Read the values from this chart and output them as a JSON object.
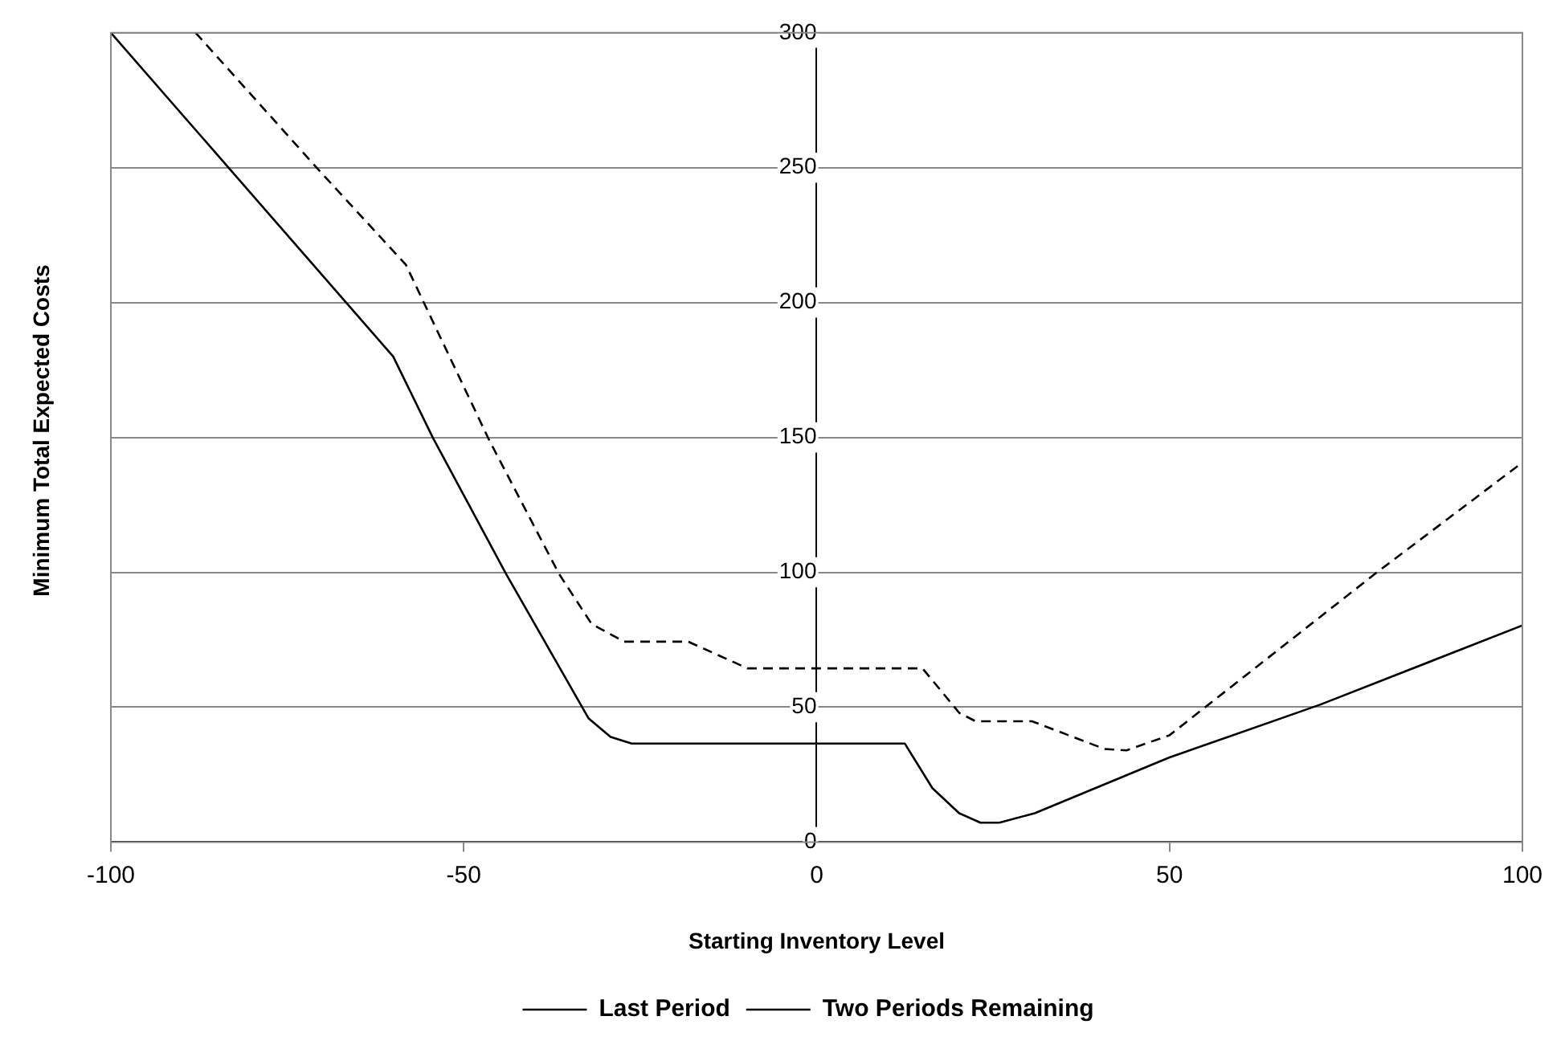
{
  "chart_data": {
    "type": "line",
    "xlabel": "Starting Inventory Level",
    "ylabel": "Minimum Total Expected Costs",
    "xlim": [
      -100,
      100
    ],
    "xticks": [
      -100,
      -50,
      0,
      50,
      100
    ],
    "ylim": [
      0,
      300
    ],
    "yticks": [
      0,
      50,
      100,
      150,
      200,
      250,
      300
    ],
    "grid": "y",
    "legend": "bottom",
    "marker": "none",
    "series": [
      {
        "name": "Last Period",
        "color": "#000000",
        "line_style": "solid",
        "x": [
          -100,
          -60,
          -54.4,
          -44,
          -32.3,
          -29.2,
          -26.2,
          12.5,
          16.4,
          20.2,
          23.2,
          25.9,
          30.9,
          50,
          71.4,
          100
        ],
        "values": [
          300,
          180,
          150,
          99.4,
          45.8,
          39,
          36.5,
          36.5,
          20,
          10.7,
          7.2,
          7.2,
          10.7,
          31.4,
          51,
          80.3
        ]
      },
      {
        "name": "Two Periods Remaining",
        "color": "#000000",
        "line_style": "dashed",
        "x": [
          -88,
          -70.5,
          -58.2,
          -46.4,
          -36.5,
          -31.9,
          -27.3,
          -18.2,
          -9.8,
          15,
          20.2,
          22.5,
          30.5,
          40.8,
          43.9,
          50,
          79.1,
          100
        ],
        "values": [
          300,
          249,
          214,
          149,
          99.4,
          80.9,
          74.3,
          74.3,
          64.4,
          64.4,
          47.9,
          44.8,
          44.8,
          34.5,
          34,
          39.6,
          99.4,
          140.7
        ]
      }
    ]
  }
}
